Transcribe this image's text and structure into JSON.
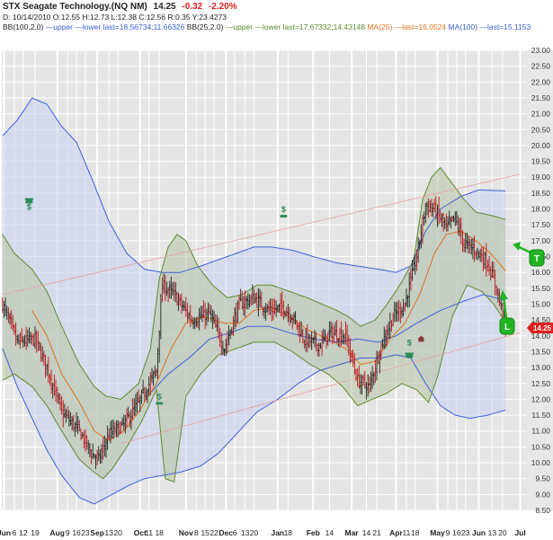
{
  "header": {
    "title": "STX Seagate Technology.(NQ NM)",
    "last": "14.25",
    "change": "-0.32",
    "change_pct": "-2.20%",
    "date": "D: 10/14/2010",
    "open": "O:12.55",
    "high": "H:12.73",
    "low": "L:12.38",
    "close": "C:12.56",
    "r": "R:0.35",
    "y": "Y:23.4273",
    "bb100_label": "BB(100,2.0)",
    "bb100_upper": "upper",
    "bb100_lower": "lower",
    "bb100_last": "last=18.56734;11.66326",
    "bb25_label": "BB(25,2.0)",
    "bb25_upper": "upper",
    "bb25_lower": "lower",
    "bb25_last": "last=17.67332;14.43148",
    "ma25_label": "MA(25)",
    "ma25_last": "last=16.0524",
    "ma100_label": "MA(100)",
    "ma100_last": "last=15.1153"
  },
  "price_badge": "14.25",
  "annotations": {
    "t_label": "T",
    "l_label": "L"
  },
  "colors": {
    "bb100": "#3a5fd8",
    "bb25": "#5d8a2a",
    "ma25": "#e07020",
    "ma100": "#3a5fd8",
    "badge": "#e02020",
    "marker": "#22b322",
    "bar": "#222222",
    "bar_down": "#c0141c"
  },
  "chart_data": {
    "type": "ohlc",
    "y_axis_side": "right",
    "ylim": [
      8.5,
      23.0
    ],
    "y_ticks": [
      "8.50",
      "9.00",
      "9.50",
      "10.00",
      "10.50",
      "11.00",
      "11.50",
      "12.00",
      "12.50",
      "13.00",
      "13.50",
      "14.00",
      "14.50",
      "15.00",
      "15.50",
      "16.00",
      "16.50",
      "17.00",
      "17.50",
      "18.00",
      "18.50",
      "19.00",
      "19.50",
      "20.00",
      "20.50",
      "21.00",
      "21.50",
      "22.00",
      "22.50",
      "23.00"
    ],
    "x_ticks": [
      {
        "label": "Jun",
        "bold": true,
        "i": 1
      },
      {
        "label": "6",
        "i": 8
      },
      {
        "label": "12",
        "i": 14
      },
      {
        "label": "19",
        "i": 22
      },
      {
        "label": "Aug",
        "bold": true,
        "i": 37
      },
      {
        "label": "9",
        "i": 44
      },
      {
        "label": "16",
        "i": 50
      },
      {
        "label": "23",
        "i": 56
      },
      {
        "label": "Sep",
        "bold": true,
        "i": 64
      },
      {
        "label": "13",
        "i": 72
      },
      {
        "label": "20",
        "i": 78
      },
      {
        "label": "Oct",
        "bold": true,
        "i": 93
      },
      {
        "label": "11",
        "i": 99
      },
      {
        "label": "18",
        "i": 106
      },
      {
        "label": "Nov",
        "bold": true,
        "i": 124
      },
      {
        "label": "8",
        "i": 131
      },
      {
        "label": "15",
        "i": 137
      },
      {
        "label": "22",
        "i": 143
      },
      {
        "label": "Dec",
        "bold": true,
        "i": 151
      },
      {
        "label": "6",
        "i": 157
      },
      {
        "label": "13",
        "i": 164
      },
      {
        "label": "20",
        "i": 170
      },
      {
        "label": "Jan",
        "bold": true,
        "i": 186
      },
      {
        "label": "18",
        "i": 193
      },
      {
        "label": "Feb",
        "bold": true,
        "i": 210
      },
      {
        "label": "14",
        "i": 221
      },
      {
        "label": "Mar",
        "bold": true,
        "i": 236
      },
      {
        "label": "14",
        "i": 246
      },
      {
        "label": "21",
        "i": 253
      },
      {
        "label": "Apr",
        "bold": true,
        "i": 266
      },
      {
        "label": "11",
        "i": 273
      },
      {
        "label": "18",
        "i": 279
      },
      {
        "label": "May",
        "bold": true,
        "i": 294
      },
      {
        "label": "9",
        "i": 301
      },
      {
        "label": "16",
        "i": 307
      },
      {
        "label": "23",
        "i": 313
      },
      {
        "label": "Jun",
        "bold": true,
        "i": 322
      },
      {
        "label": "13",
        "i": 331
      },
      {
        "label": "20",
        "i": 338
      },
      {
        "label": "Jul",
        "bold": true,
        "i": 350
      }
    ],
    "num_bars": 341,
    "n_slots": 355,
    "close_keyframes": [
      [
        0,
        15.0
      ],
      [
        10,
        13.8
      ],
      [
        22,
        13.9
      ],
      [
        30,
        13.0
      ],
      [
        40,
        11.6
      ],
      [
        52,
        11.0
      ],
      [
        60,
        10.3
      ],
      [
        65,
        10.1
      ],
      [
        72,
        10.9
      ],
      [
        82,
        11.2
      ],
      [
        92,
        11.9
      ],
      [
        104,
        12.9
      ],
      [
        108,
        15.6
      ],
      [
        116,
        15.3
      ],
      [
        128,
        14.5
      ],
      [
        140,
        14.7
      ],
      [
        150,
        13.6
      ],
      [
        160,
        15.0
      ],
      [
        170,
        15.2
      ],
      [
        180,
        14.8
      ],
      [
        190,
        14.9
      ],
      [
        196,
        14.6
      ],
      [
        204,
        13.9
      ],
      [
        214,
        13.7
      ],
      [
        222,
        14.1
      ],
      [
        232,
        14.0
      ],
      [
        240,
        12.6
      ],
      [
        248,
        12.4
      ],
      [
        256,
        13.7
      ],
      [
        264,
        14.6
      ],
      [
        272,
        15.0
      ],
      [
        280,
        16.5
      ],
      [
        286,
        18.1
      ],
      [
        292,
        18.0
      ],
      [
        300,
        17.4
      ],
      [
        306,
        17.7
      ],
      [
        312,
        16.9
      ],
      [
        320,
        16.7
      ],
      [
        328,
        16.3
      ],
      [
        334,
        15.5
      ],
      [
        340,
        14.25
      ]
    ],
    "ma25_keyframes": [
      [
        20,
        14.8
      ],
      [
        30,
        14.0
      ],
      [
        40,
        12.8
      ],
      [
        52,
        11.9
      ],
      [
        62,
        11.0
      ],
      [
        72,
        10.7
      ],
      [
        82,
        11.0
      ],
      [
        92,
        11.6
      ],
      [
        104,
        12.5
      ],
      [
        114,
        13.6
      ],
      [
        124,
        14.4
      ],
      [
        136,
        14.6
      ],
      [
        150,
        14.4
      ],
      [
        160,
        14.4
      ],
      [
        170,
        14.8
      ],
      [
        182,
        14.9
      ],
      [
        194,
        14.6
      ],
      [
        206,
        14.2
      ],
      [
        220,
        13.9
      ],
      [
        232,
        13.6
      ],
      [
        242,
        13.1
      ],
      [
        252,
        13.2
      ],
      [
        262,
        13.9
      ],
      [
        272,
        14.4
      ],
      [
        282,
        15.3
      ],
      [
        292,
        16.6
      ],
      [
        300,
        17.2
      ],
      [
        310,
        17.3
      ],
      [
        320,
        17.0
      ],
      [
        330,
        16.6
      ],
      [
        340,
        16.05
      ]
    ],
    "ma100_keyframes": [
      [
        100,
        12.2
      ],
      [
        112,
        12.8
      ],
      [
        126,
        13.3
      ],
      [
        140,
        13.9
      ],
      [
        154,
        14.1
      ],
      [
        166,
        14.3
      ],
      [
        180,
        14.3
      ],
      [
        194,
        14.1
      ],
      [
        210,
        13.9
      ],
      [
        226,
        13.8
      ],
      [
        240,
        13.9
      ],
      [
        254,
        13.8
      ],
      [
        266,
        14.0
      ],
      [
        280,
        14.4
      ],
      [
        296,
        14.8
      ],
      [
        312,
        15.1
      ],
      [
        325,
        15.3
      ],
      [
        340,
        15.12
      ]
    ],
    "bb25_upper_keyframes": [
      [
        0,
        17.2
      ],
      [
        8,
        16.6
      ],
      [
        20,
        16.1
      ],
      [
        30,
        15.4
      ],
      [
        40,
        14.3
      ],
      [
        52,
        13.1
      ],
      [
        62,
        12.4
      ],
      [
        70,
        12.1
      ],
      [
        80,
        12.0
      ],
      [
        92,
        12.5
      ],
      [
        100,
        13.6
      ],
      [
        106,
        15.8
      ],
      [
        112,
        16.8
      ],
      [
        118,
        17.2
      ],
      [
        124,
        17.0
      ],
      [
        132,
        16.2
      ],
      [
        142,
        15.6
      ],
      [
        152,
        15.2
      ],
      [
        162,
        15.3
      ],
      [
        172,
        15.6
      ],
      [
        182,
        15.6
      ],
      [
        194,
        15.4
      ],
      [
        206,
        15.2
      ],
      [
        216,
        15.0
      ],
      [
        226,
        14.8
      ],
      [
        234,
        14.6
      ],
      [
        242,
        14.3
      ],
      [
        252,
        14.5
      ],
      [
        260,
        15.0
      ],
      [
        270,
        15.7
      ],
      [
        278,
        16.4
      ],
      [
        284,
        18.3
      ],
      [
        290,
        19.0
      ],
      [
        296,
        19.3
      ],
      [
        304,
        18.8
      ],
      [
        312,
        18.3
      ],
      [
        320,
        17.9
      ],
      [
        330,
        17.8
      ],
      [
        340,
        17.67
      ]
    ],
    "bb25_lower_keyframes": [
      [
        0,
        12.6
      ],
      [
        8,
        12.8
      ],
      [
        20,
        12.4
      ],
      [
        30,
        11.8
      ],
      [
        40,
        11.0
      ],
      [
        52,
        10.1
      ],
      [
        62,
        9.7
      ],
      [
        68,
        9.5
      ],
      [
        74,
        9.8
      ],
      [
        84,
        10.5
      ],
      [
        94,
        11.3
      ],
      [
        104,
        12.3
      ],
      [
        110,
        9.5
      ],
      [
        116,
        9.4
      ],
      [
        124,
        12.1
      ],
      [
        134,
        12.8
      ],
      [
        146,
        13.4
      ],
      [
        158,
        13.6
      ],
      [
        170,
        13.8
      ],
      [
        184,
        13.8
      ],
      [
        196,
        13.5
      ],
      [
        208,
        13.1
      ],
      [
        220,
        12.8
      ],
      [
        230,
        12.4
      ],
      [
        240,
        11.8
      ],
      [
        250,
        12.0
      ],
      [
        260,
        12.2
      ],
      [
        270,
        12.5
      ],
      [
        280,
        12.3
      ],
      [
        288,
        11.9
      ],
      [
        294,
        12.7
      ],
      [
        304,
        14.6
      ],
      [
        314,
        15.6
      ],
      [
        324,
        15.4
      ],
      [
        332,
        15.0
      ],
      [
        340,
        14.43
      ]
    ],
    "bb100_upper_keyframes": [
      [
        0,
        20.3
      ],
      [
        10,
        20.8
      ],
      [
        20,
        21.5
      ],
      [
        30,
        21.3
      ],
      [
        40,
        20.6
      ],
      [
        50,
        20.1
      ],
      [
        60,
        19.0
      ],
      [
        72,
        17.6
      ],
      [
        84,
        16.6
      ],
      [
        96,
        16.1
      ],
      [
        108,
        16.0
      ],
      [
        120,
        16.0
      ],
      [
        134,
        16.2
      ],
      [
        146,
        16.4
      ],
      [
        158,
        16.6
      ],
      [
        170,
        16.8
      ],
      [
        182,
        16.8
      ],
      [
        196,
        16.7
      ],
      [
        210,
        16.5
      ],
      [
        226,
        16.3
      ],
      [
        240,
        16.2
      ],
      [
        254,
        16.1
      ],
      [
        266,
        16.0
      ],
      [
        276,
        16.2
      ],
      [
        286,
        17.3
      ],
      [
        296,
        18.0
      ],
      [
        310,
        18.4
      ],
      [
        322,
        18.6
      ],
      [
        340,
        18.57
      ]
    ],
    "bb100_lower_keyframes": [
      [
        0,
        13.6
      ],
      [
        10,
        12.4
      ],
      [
        20,
        11.4
      ],
      [
        30,
        10.4
      ],
      [
        40,
        9.6
      ],
      [
        52,
        8.9
      ],
      [
        62,
        8.7
      ],
      [
        74,
        9.0
      ],
      [
        86,
        9.3
      ],
      [
        96,
        9.5
      ],
      [
        108,
        9.6
      ],
      [
        120,
        9.7
      ],
      [
        134,
        9.9
      ],
      [
        146,
        10.3
      ],
      [
        158,
        10.9
      ],
      [
        172,
        11.6
      ],
      [
        186,
        12.0
      ],
      [
        200,
        12.5
      ],
      [
        214,
        12.9
      ],
      [
        228,
        13.1
      ],
      [
        242,
        13.3
      ],
      [
        256,
        13.3
      ],
      [
        266,
        13.4
      ],
      [
        276,
        13.3
      ],
      [
        286,
        12.5
      ],
      [
        296,
        11.8
      ],
      [
        306,
        11.5
      ],
      [
        316,
        11.4
      ],
      [
        328,
        11.5
      ],
      [
        340,
        11.66
      ]
    ],
    "trendlines": [
      {
        "name": "upper-resistance",
        "from": [
          0,
          15.3
        ],
        "to": [
          350,
          19.1
        ]
      },
      {
        "name": "lower-support",
        "from": [
          80,
          10.6
        ],
        "to": [
          350,
          14.1
        ]
      }
    ],
    "event_icons": [
      {
        "kind": "phone-dollar",
        "i": 18,
        "y": 18.2
      },
      {
        "kind": "dollar",
        "i": 106,
        "y": 12.0
      },
      {
        "kind": "dollar",
        "i": 190,
        "y": 17.9
      },
      {
        "kind": "dollar-phone",
        "i": 275,
        "y": 13.5
      },
      {
        "kind": "house",
        "i": 283,
        "y": 13.9
      }
    ]
  }
}
